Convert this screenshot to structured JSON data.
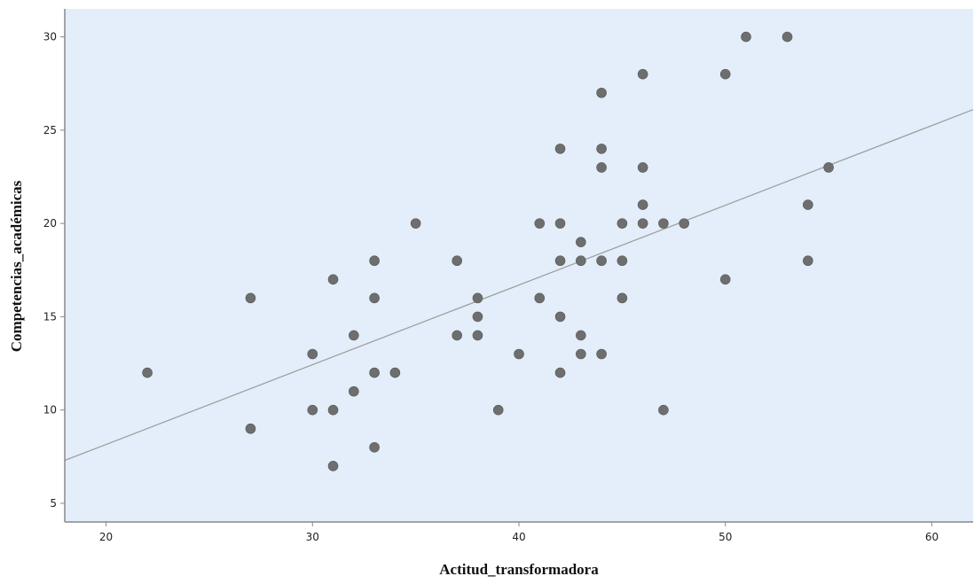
{
  "chart_data": {
    "type": "scatter",
    "title": "",
    "xlabel": "Actitud_transformadora",
    "ylabel": "Competencias_académicas",
    "xlim": [
      18,
      62
    ],
    "ylim": [
      4,
      31.5
    ],
    "xticks": [
      20,
      30,
      40,
      50,
      60
    ],
    "yticks": [
      5,
      10,
      15,
      20,
      25,
      30
    ],
    "grid": false,
    "plot_background": "#e3eefa",
    "point_color": "#6e6e6e",
    "fit_line_color": "#a0a0a0",
    "fit_line": {
      "x": [
        18,
        62
      ],
      "y": [
        7.3,
        26.1
      ]
    },
    "points": [
      {
        "x": 22,
        "y": 12
      },
      {
        "x": 27,
        "y": 16
      },
      {
        "x": 27,
        "y": 9
      },
      {
        "x": 30,
        "y": 13
      },
      {
        "x": 30,
        "y": 10
      },
      {
        "x": 31,
        "y": 17
      },
      {
        "x": 31,
        "y": 10
      },
      {
        "x": 31,
        "y": 7
      },
      {
        "x": 32,
        "y": 14
      },
      {
        "x": 32,
        "y": 11
      },
      {
        "x": 33,
        "y": 18
      },
      {
        "x": 33,
        "y": 16
      },
      {
        "x": 33,
        "y": 12
      },
      {
        "x": 33,
        "y": 8
      },
      {
        "x": 34,
        "y": 12
      },
      {
        "x": 35,
        "y": 20
      },
      {
        "x": 37,
        "y": 18
      },
      {
        "x": 37,
        "y": 14
      },
      {
        "x": 38,
        "y": 16
      },
      {
        "x": 38,
        "y": 15
      },
      {
        "x": 38,
        "y": 14
      },
      {
        "x": 39,
        "y": 10
      },
      {
        "x": 40,
        "y": 13
      },
      {
        "x": 41,
        "y": 20
      },
      {
        "x": 41,
        "y": 16
      },
      {
        "x": 42,
        "y": 24
      },
      {
        "x": 42,
        "y": 20
      },
      {
        "x": 42,
        "y": 18
      },
      {
        "x": 42,
        "y": 15
      },
      {
        "x": 42,
        "y": 12
      },
      {
        "x": 43,
        "y": 19
      },
      {
        "x": 43,
        "y": 18
      },
      {
        "x": 43,
        "y": 14
      },
      {
        "x": 43,
        "y": 13
      },
      {
        "x": 44,
        "y": 27
      },
      {
        "x": 44,
        "y": 24
      },
      {
        "x": 44,
        "y": 23
      },
      {
        "x": 44,
        "y": 18
      },
      {
        "x": 44,
        "y": 13
      },
      {
        "x": 45,
        "y": 20
      },
      {
        "x": 45,
        "y": 18
      },
      {
        "x": 45,
        "y": 16
      },
      {
        "x": 46,
        "y": 28
      },
      {
        "x": 46,
        "y": 23
      },
      {
        "x": 46,
        "y": 21
      },
      {
        "x": 46,
        "y": 20
      },
      {
        "x": 47,
        "y": 20
      },
      {
        "x": 47,
        "y": 10
      },
      {
        "x": 48,
        "y": 20
      },
      {
        "x": 50,
        "y": 28
      },
      {
        "x": 50,
        "y": 17
      },
      {
        "x": 51,
        "y": 30
      },
      {
        "x": 53,
        "y": 30
      },
      {
        "x": 54,
        "y": 21
      },
      {
        "x": 54,
        "y": 18
      },
      {
        "x": 55,
        "y": 23
      }
    ]
  }
}
